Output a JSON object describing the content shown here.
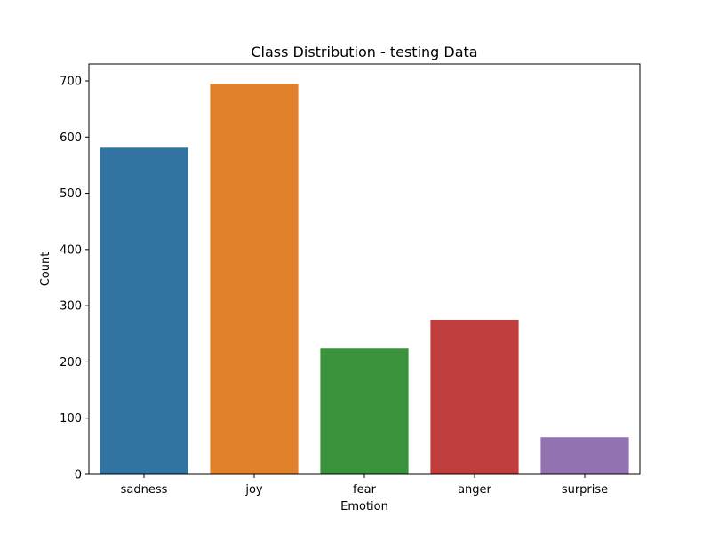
{
  "chart_data": {
    "type": "bar",
    "title": "Class Distribution - testing Data",
    "xlabel": "Emotion",
    "ylabel": "Count",
    "categories": [
      "sadness",
      "joy",
      "fear",
      "anger",
      "surprise"
    ],
    "values": [
      581,
      695,
      224,
      275,
      66
    ],
    "colors": [
      "#3274a1",
      "#e1812c",
      "#3a923a",
      "#c03d3e",
      "#9372b2"
    ],
    "ylim": [
      0,
      730
    ],
    "yticks": [
      0,
      100,
      200,
      300,
      400,
      500,
      600,
      700
    ],
    "grid": false,
    "legend": "none"
  }
}
